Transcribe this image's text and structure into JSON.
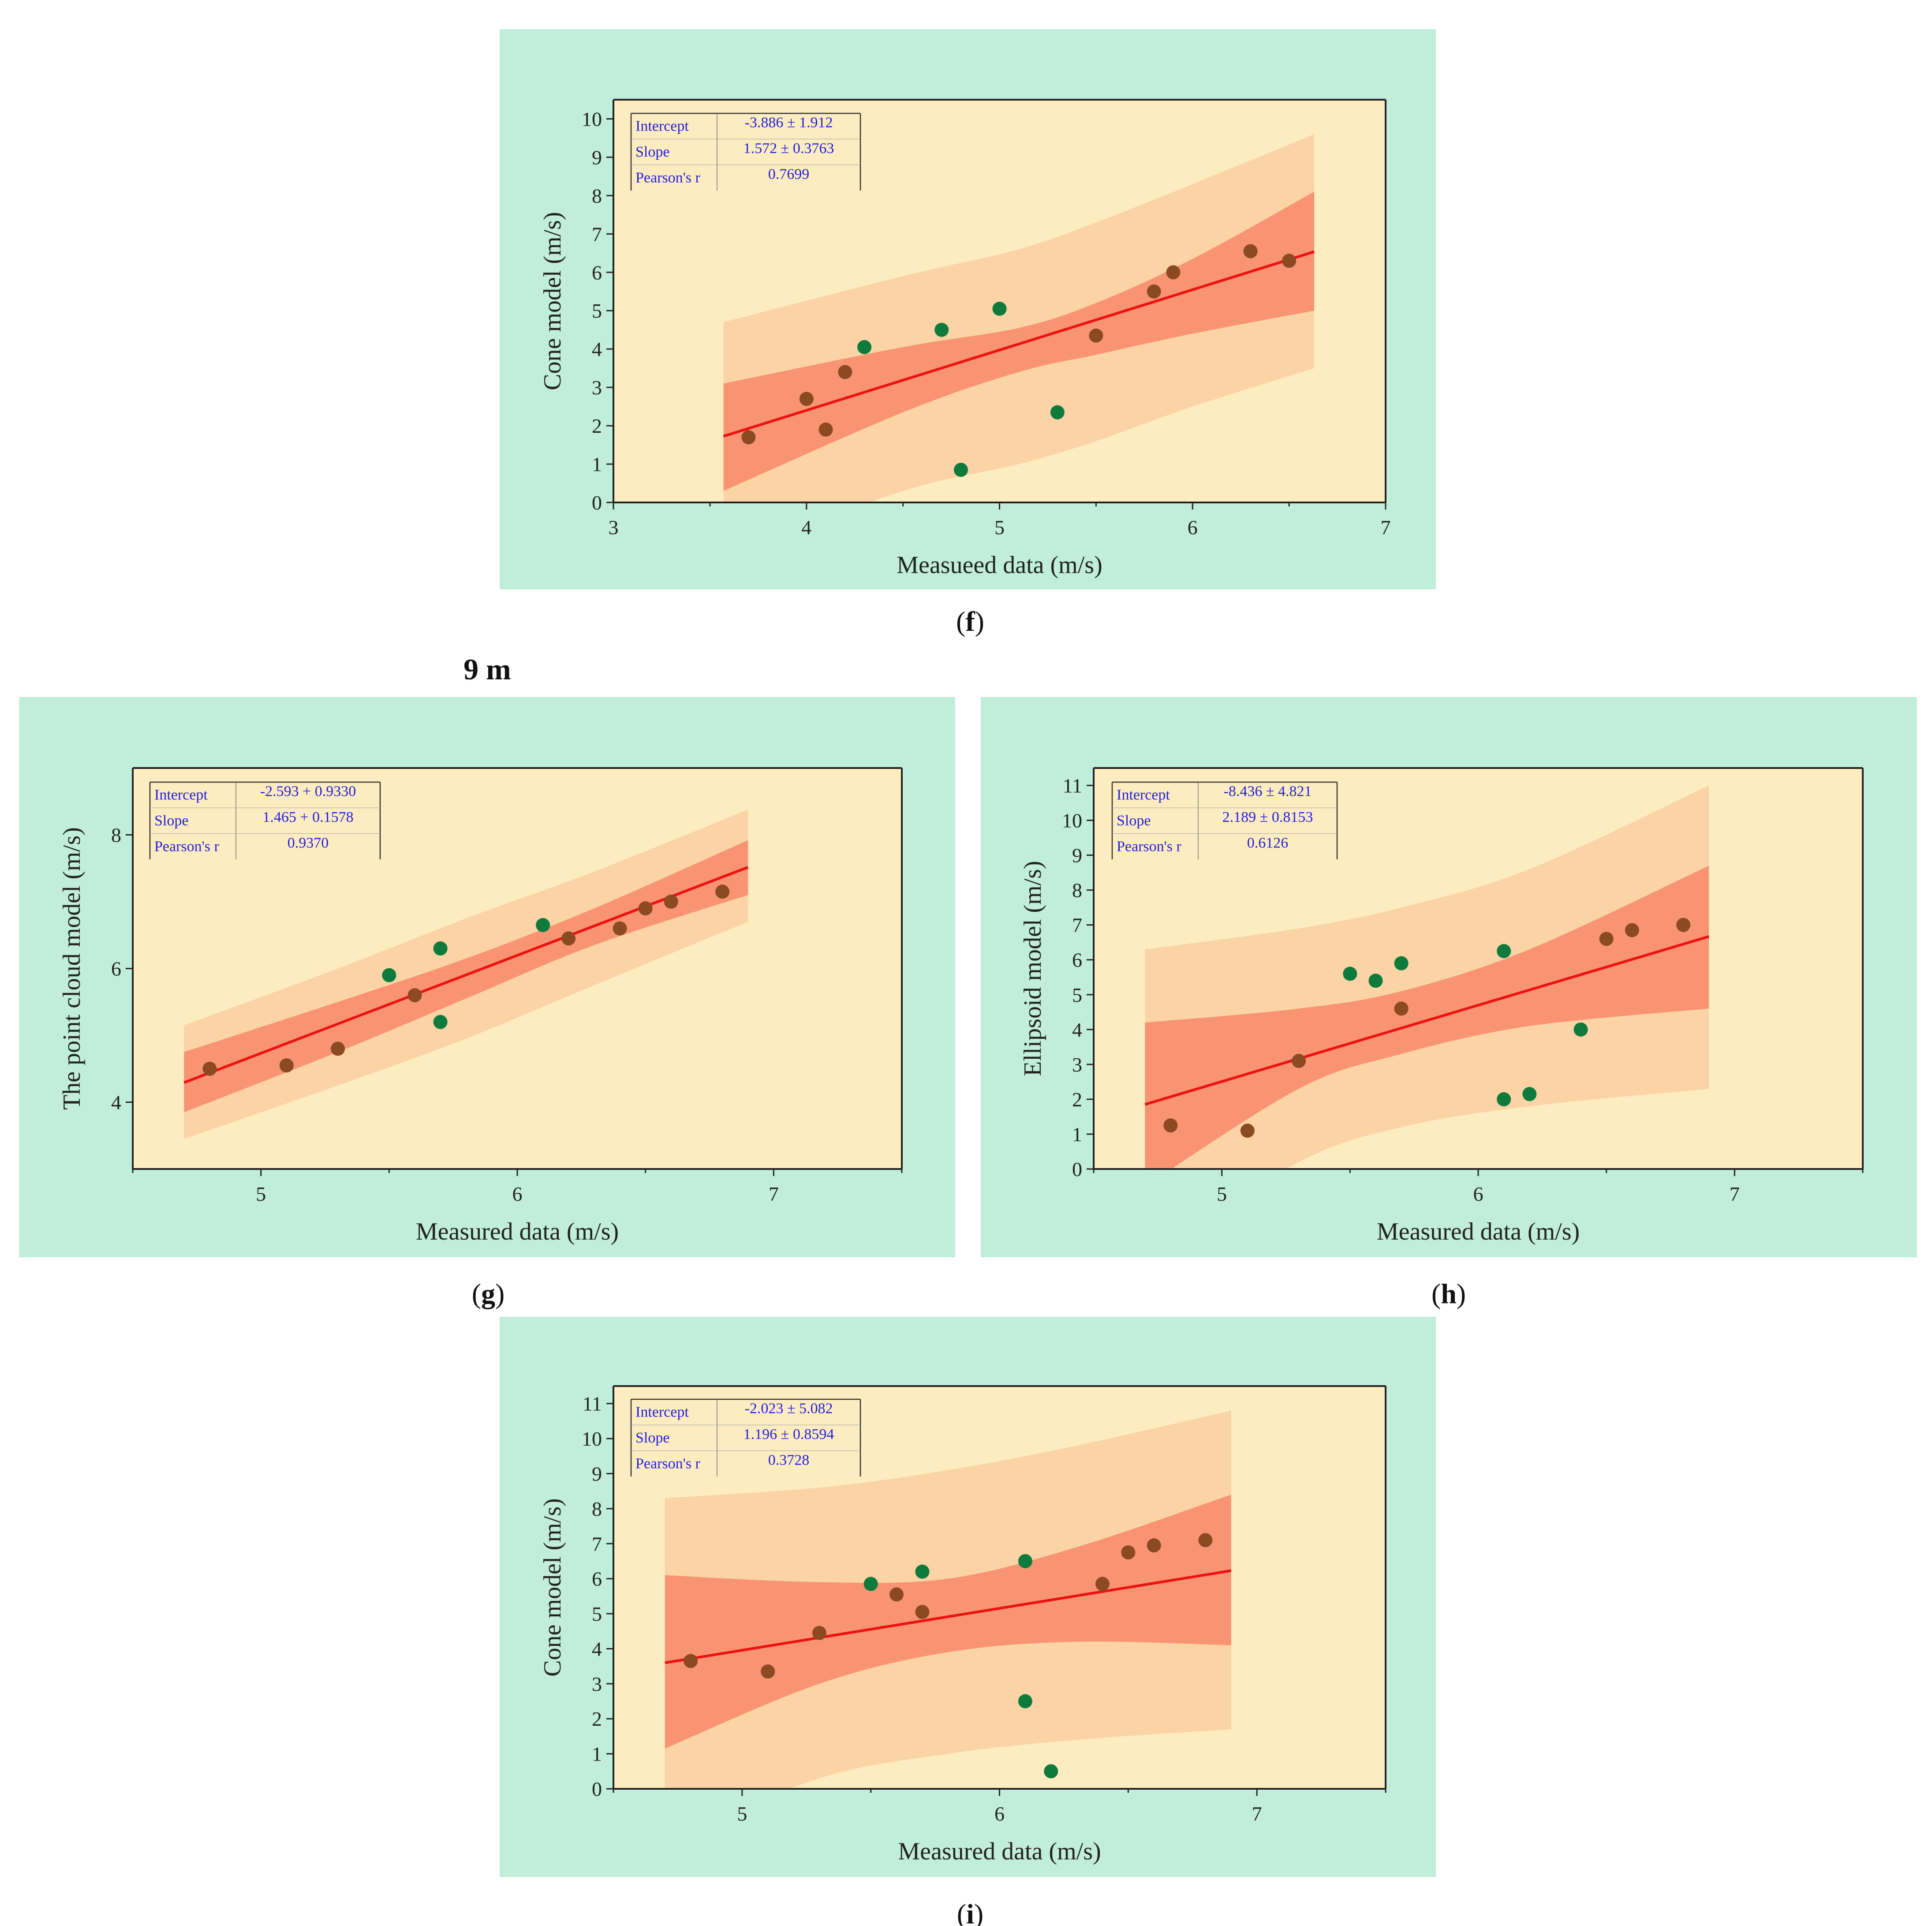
{
  "figure": {
    "section_heading": "9 m",
    "colors": {
      "panel_bg": "#c0eedb",
      "plot_bg": "#fdecc0",
      "band_prediction": "#fbd3a4",
      "band_confidence": "#f99472",
      "fit_line": "#ee1111",
      "point_brown": "#8b4a22",
      "point_green": "#0e7a3c",
      "stats_text": "#2222dd"
    }
  },
  "chart_data": [
    {
      "id": "f",
      "panel_label": "f",
      "type": "scatter",
      "xlabel": "Measueed data (m/s)",
      "ylabel": "Cone model (m/s)",
      "xlim": [
        3,
        7
      ],
      "ylim": [
        0,
        10.5
      ],
      "xticks": [
        3,
        4,
        5,
        6,
        7
      ],
      "yticks": [
        0,
        1,
        2,
        3,
        4,
        5,
        6,
        7,
        8,
        9,
        10
      ],
      "stats": [
        {
          "label": "Intercept",
          "value": "-3.886 ± 1.912"
        },
        {
          "label": "Slope",
          "value": "1.572 ± 0.3763"
        },
        {
          "label": "Pearson's r",
          "value": "0.7699"
        }
      ],
      "fit": {
        "intercept": -3.886,
        "slope": 1.572,
        "x_range": [
          3.57,
          6.63
        ]
      },
      "confidence_band": {
        "x": [
          3.57,
          4.5,
          5.1,
          5.5,
          6.0,
          6.63
        ],
        "upper": [
          3.1,
          4.05,
          4.55,
          5.2,
          6.35,
          8.1
        ],
        "lower": [
          0.3,
          2.35,
          3.4,
          3.85,
          4.4,
          5.0
        ]
      },
      "prediction_band": {
        "x": [
          3.57,
          4.5,
          5.1,
          5.5,
          6.0,
          6.63
        ],
        "upper": [
          4.7,
          5.9,
          6.6,
          7.3,
          8.3,
          9.6
        ],
        "lower": [
          -1.4,
          0.3,
          1.0,
          1.6,
          2.5,
          3.5
        ]
      },
      "series": [
        {
          "name": "brown",
          "points": [
            [
              3.7,
              1.7
            ],
            [
              4.0,
              2.7
            ],
            [
              4.1,
              1.9
            ],
            [
              4.2,
              3.4
            ],
            [
              5.5,
              4.35
            ],
            [
              5.8,
              5.5
            ],
            [
              5.9,
              6.0
            ],
            [
              6.3,
              6.55
            ],
            [
              6.5,
              6.3
            ]
          ]
        },
        {
          "name": "green",
          "points": [
            [
              4.3,
              4.05
            ],
            [
              4.7,
              4.5
            ],
            [
              4.8,
              0.85
            ],
            [
              5.0,
              5.05
            ],
            [
              5.3,
              2.35
            ]
          ]
        }
      ]
    },
    {
      "id": "g",
      "panel_label": "g",
      "type": "scatter",
      "xlabel": "Measured data (m/s)",
      "ylabel": "The point cloud model (m/s)",
      "xlim": [
        4.5,
        7.5
      ],
      "ylim": [
        3,
        9
      ],
      "xticks": [
        5,
        6,
        7
      ],
      "yticks": [
        4,
        6,
        8
      ],
      "stats": [
        {
          "label": "Intercept",
          "value": "-2.593 + 0.9330"
        },
        {
          "label": "Slope",
          "value": "1.465 + 0.1578"
        },
        {
          "label": "Pearson's r",
          "value": "0.9370"
        }
      ],
      "fit": {
        "intercept": -2.593,
        "slope": 1.465,
        "x_range": [
          4.7,
          6.9
        ]
      },
      "confidence_band": {
        "x": [
          4.7,
          5.3,
          5.8,
          6.3,
          6.9
        ],
        "upper": [
          4.75,
          5.5,
          6.15,
          6.9,
          7.92
        ],
        "lower": [
          3.85,
          4.75,
          5.55,
          6.35,
          7.1
        ]
      },
      "prediction_band": {
        "x": [
          4.7,
          5.3,
          5.8,
          6.3,
          6.9
        ],
        "upper": [
          5.15,
          6.0,
          6.75,
          7.45,
          8.38
        ],
        "lower": [
          3.45,
          4.25,
          4.95,
          5.75,
          6.7
        ]
      },
      "series": [
        {
          "name": "brown",
          "points": [
            [
              4.8,
              4.5
            ],
            [
              5.1,
              4.55
            ],
            [
              5.3,
              4.8
            ],
            [
              5.6,
              5.6
            ],
            [
              6.2,
              6.45
            ],
            [
              6.4,
              6.6
            ],
            [
              6.5,
              6.9
            ],
            [
              6.6,
              7.0
            ],
            [
              6.8,
              7.15
            ]
          ]
        },
        {
          "name": "green",
          "points": [
            [
              5.5,
              5.9
            ],
            [
              5.7,
              6.3
            ],
            [
              5.7,
              5.2
            ],
            [
              6.1,
              6.65
            ]
          ]
        }
      ]
    },
    {
      "id": "h",
      "panel_label": "h",
      "type": "scatter",
      "xlabel": "Measured data (m/s)",
      "ylabel": "Ellipsoid model (m/s)",
      "xlim": [
        4.5,
        7.5
      ],
      "ylim": [
        0,
        11.5
      ],
      "xticks": [
        5,
        6,
        7
      ],
      "yticks": [
        0,
        1,
        2,
        3,
        4,
        5,
        6,
        7,
        8,
        9,
        10,
        11
      ],
      "stats": [
        {
          "label": "Intercept",
          "value": "-8.436 ± 4.821"
        },
        {
          "label": "Slope",
          "value": "2.189 ± 0.8153"
        },
        {
          "label": "Pearson's r",
          "value": "0.6126"
        }
      ],
      "fit": {
        "intercept": -8.436,
        "slope": 2.189,
        "x_range": [
          4.7,
          6.9
        ]
      },
      "confidence_band": {
        "x": [
          4.7,
          5.3,
          5.7,
          6.2,
          6.9
        ],
        "upper": [
          4.2,
          4.6,
          5.1,
          6.3,
          8.7
        ],
        "lower": [
          -0.5,
          2.3,
          3.3,
          4.1,
          4.6
        ]
      },
      "prediction_band": {
        "x": [
          4.7,
          5.3,
          5.7,
          6.2,
          6.9
        ],
        "upper": [
          6.3,
          6.9,
          7.5,
          8.6,
          11.0
        ],
        "lower": [
          -2.5,
          0.2,
          1.2,
          1.8,
          2.3
        ]
      },
      "series": [
        {
          "name": "brown",
          "points": [
            [
              4.8,
              1.25
            ],
            [
              5.1,
              1.1
            ],
            [
              5.3,
              3.1
            ],
            [
              5.7,
              4.6
            ],
            [
              6.5,
              6.6
            ],
            [
              6.6,
              6.85
            ],
            [
              6.8,
              7.0
            ]
          ]
        },
        {
          "name": "green",
          "points": [
            [
              5.5,
              5.6
            ],
            [
              5.6,
              5.4
            ],
            [
              5.7,
              5.9
            ],
            [
              6.1,
              6.25
            ],
            [
              6.1,
              2.0
            ],
            [
              6.2,
              2.15
            ],
            [
              6.4,
              4.0
            ]
          ]
        }
      ]
    },
    {
      "id": "i",
      "panel_label": "i",
      "type": "scatter",
      "xlabel": "Measured data (m/s)",
      "ylabel": "Cone model (m/s)",
      "xlim": [
        4.5,
        7.5
      ],
      "ylim": [
        0,
        11.5
      ],
      "xticks": [
        5,
        6,
        7
      ],
      "yticks": [
        0,
        1,
        2,
        3,
        4,
        5,
        6,
        7,
        8,
        9,
        10,
        11
      ],
      "stats": [
        {
          "label": "Intercept",
          "value": "-2.023 ± 5.082"
        },
        {
          "label": "Slope",
          "value": "1.196 ± 0.8594"
        },
        {
          "label": "Pearson's r",
          "value": "0.3728"
        }
      ],
      "fit": {
        "intercept": -2.023,
        "slope": 1.196,
        "x_range": [
          4.7,
          6.9
        ]
      },
      "confidence_band": {
        "x": [
          4.7,
          5.3,
          5.8,
          6.3,
          6.9
        ],
        "upper": [
          6.1,
          5.9,
          6.0,
          6.9,
          8.4
        ],
        "lower": [
          1.15,
          3.0,
          3.9,
          4.2,
          4.1
        ]
      },
      "prediction_band": {
        "x": [
          4.7,
          5.3,
          5.8,
          6.3,
          6.9
        ],
        "upper": [
          8.3,
          8.6,
          9.1,
          9.8,
          10.8
        ],
        "lower": [
          -1.5,
          0.3,
          1.0,
          1.4,
          1.7
        ]
      },
      "series": [
        {
          "name": "brown",
          "points": [
            [
              4.8,
              3.65
            ],
            [
              5.1,
              3.35
            ],
            [
              5.3,
              4.45
            ],
            [
              5.6,
              5.55
            ],
            [
              5.7,
              5.05
            ],
            [
              6.4,
              5.85
            ],
            [
              6.5,
              6.75
            ],
            [
              6.6,
              6.95
            ],
            [
              6.8,
              7.1
            ]
          ]
        },
        {
          "name": "green",
          "points": [
            [
              5.5,
              5.85
            ],
            [
              5.7,
              6.2
            ],
            [
              6.1,
              6.5
            ],
            [
              6.1,
              2.5
            ],
            [
              6.2,
              0.5
            ]
          ]
        }
      ]
    }
  ]
}
